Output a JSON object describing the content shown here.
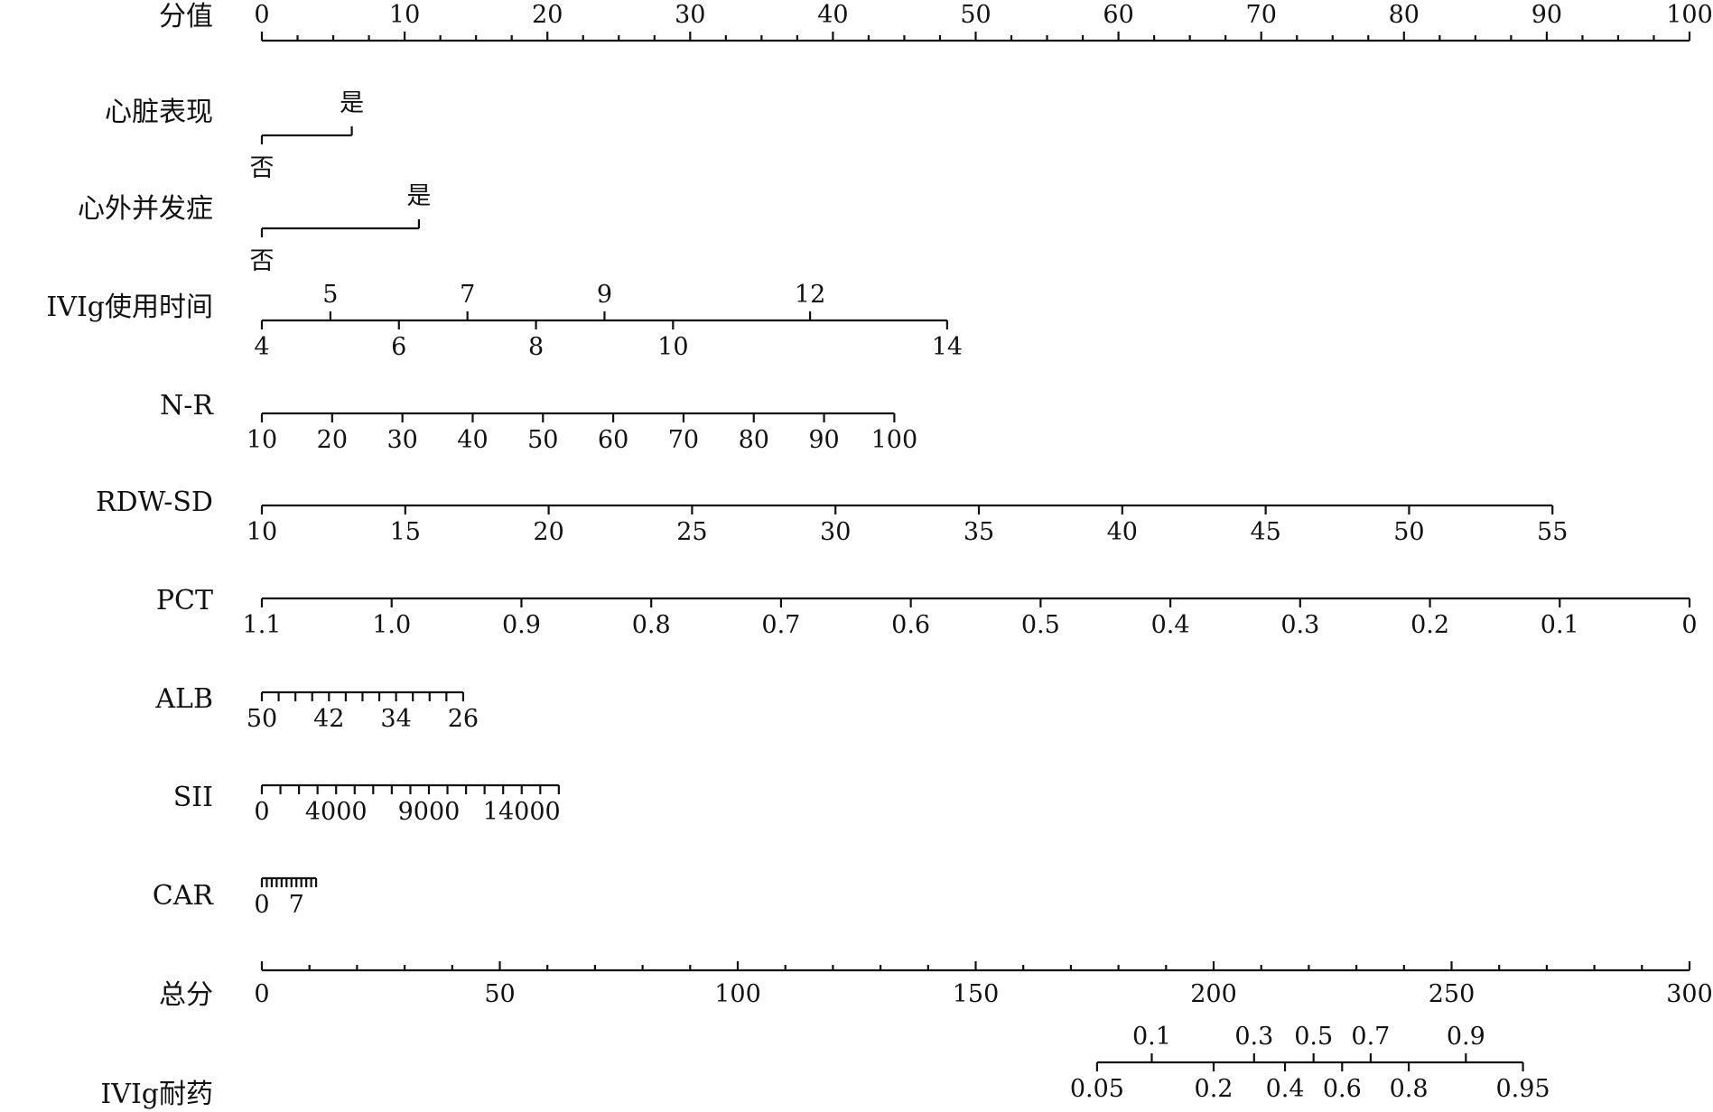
{
  "chart_data": {
    "type": "nomogram",
    "rows": [
      {
        "label": "分值",
        "scale_kind": "points",
        "domain": [
          0,
          100
        ],
        "labels_above": [
          "0",
          "10",
          "20",
          "30",
          "40",
          "50",
          "60",
          "70",
          "80",
          "90",
          "100"
        ],
        "label_values": [
          0,
          10,
          20,
          30,
          40,
          50,
          60,
          70,
          80,
          90,
          100
        ],
        "minor_tick_step": 2.5
      },
      {
        "label": "心脏表现",
        "scale_kind": "categorical",
        "categories": [
          {
            "text": "否",
            "points": 0,
            "label_position": "below"
          },
          {
            "text": "是",
            "points": 6.3,
            "label_position": "above"
          }
        ]
      },
      {
        "label": "心外并发症",
        "scale_kind": "categorical",
        "categories": [
          {
            "text": "否",
            "points": 0,
            "label_position": "below"
          },
          {
            "text": "是",
            "points": 11,
            "label_position": "above"
          }
        ]
      },
      {
        "label": "IVIg使用时间",
        "scale_kind": "linear",
        "value_range": [
          4,
          14
        ],
        "points_range": [
          0,
          48
        ],
        "ticks": [
          4,
          5,
          6,
          7,
          8,
          9,
          10,
          12,
          14
        ],
        "labels_above": [
          "5",
          "7",
          "9",
          "12"
        ],
        "labels_below": [
          "4",
          "6",
          "8",
          "10",
          "14"
        ]
      },
      {
        "label": "N-R",
        "scale_kind": "linear",
        "value_range": [
          10,
          100
        ],
        "points_range": [
          0,
          44.3
        ],
        "ticks": [
          10,
          20,
          30,
          40,
          50,
          60,
          70,
          80,
          90,
          100
        ],
        "labels_below": [
          "10",
          "20",
          "30",
          "40",
          "50",
          "60",
          "70",
          "80",
          "90",
          "100"
        ]
      },
      {
        "label": "RDW-SD",
        "scale_kind": "linear",
        "value_range": [
          10,
          55
        ],
        "points_range": [
          0,
          90.4
        ],
        "ticks": [
          10,
          15,
          20,
          25,
          30,
          35,
          40,
          45,
          50,
          55
        ],
        "labels_below": [
          "10",
          "15",
          "20",
          "25",
          "30",
          "35",
          "40",
          "45",
          "50",
          "55"
        ]
      },
      {
        "label": "PCT",
        "scale_kind": "linear",
        "value_range": [
          1.1,
          0
        ],
        "points_range": [
          0,
          100
        ],
        "ticks": [
          1.1,
          1.0,
          0.9,
          0.8,
          0.7,
          0.6,
          0.5,
          0.4,
          0.3,
          0.2,
          0.1,
          0
        ],
        "labels_below": [
          "1.1",
          "1.0",
          "0.9",
          "0.8",
          "0.7",
          "0.6",
          "0.5",
          "0.4",
          "0.3",
          "0.2",
          "0.1",
          "0"
        ]
      },
      {
        "label": "ALB",
        "scale_kind": "linear",
        "value_range": [
          50,
          26
        ],
        "points_range": [
          0,
          14.1
        ],
        "ticks": [
          50,
          48,
          46,
          44,
          42,
          40,
          38,
          36,
          34,
          32,
          30,
          28,
          26
        ],
        "labels_below": [
          "50",
          "42",
          "34",
          "26"
        ]
      },
      {
        "label": "SII",
        "scale_kind": "linear",
        "value_range": [
          0,
          16000
        ],
        "points_range": [
          0,
          20.8
        ],
        "ticks": [
          0,
          1000,
          2000,
          3000,
          4000,
          5000,
          6000,
          7000,
          8000,
          9000,
          10000,
          11000,
          12000,
          13000,
          14000,
          15000,
          16000
        ],
        "labels_below": [
          "0",
          "4000",
          "9000",
          "14000"
        ]
      },
      {
        "label": "CAR",
        "scale_kind": "linear",
        "value_range": [
          0,
          11
        ],
        "points_range": [
          0,
          3.8
        ],
        "ticks": [
          0,
          1,
          2,
          3,
          4,
          5,
          6,
          7,
          8,
          9,
          10,
          11
        ],
        "labels_below": [
          "0",
          "7"
        ]
      },
      {
        "label": "总分",
        "scale_kind": "points",
        "domain": [
          0,
          300
        ],
        "labels_below": [
          "0",
          "50",
          "100",
          "150",
          "200",
          "250",
          "300"
        ],
        "label_values": [
          0,
          50,
          100,
          150,
          200,
          250,
          300
        ],
        "minor_tick_step": 10
      },
      {
        "label": "IVIg耐药",
        "scale_kind": "probability",
        "total_points_at_ticks": [
          175.5,
          187,
          200,
          208.5,
          215,
          221,
          227,
          233,
          241,
          253,
          265
        ],
        "ticks": [
          0.05,
          0.1,
          0.2,
          0.3,
          0.4,
          0.5,
          0.6,
          0.7,
          0.8,
          0.9,
          0.95
        ],
        "labels_above": [
          "0.1",
          "0.3",
          "0.5",
          "0.7",
          "0.9"
        ],
        "labels_below": [
          "0.05",
          "0.2",
          "0.4",
          "0.6",
          "0.8",
          "0.95"
        ]
      }
    ]
  }
}
